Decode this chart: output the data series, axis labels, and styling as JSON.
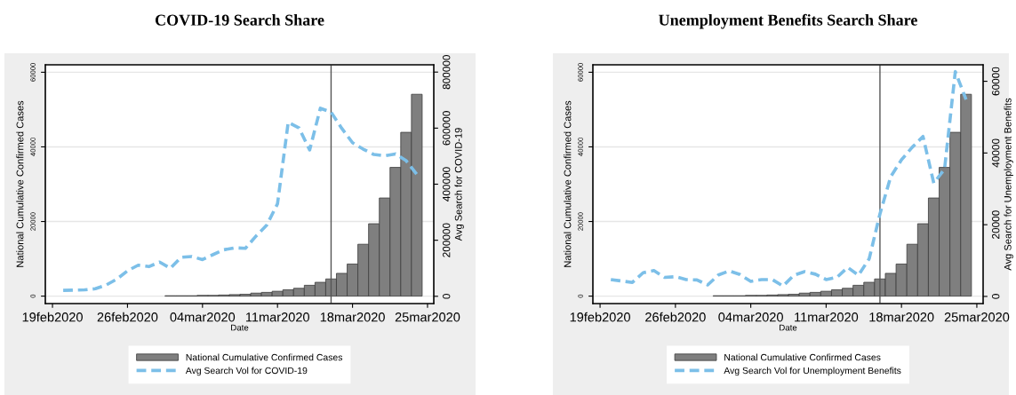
{
  "chart_data": [
    {
      "type": "bar",
      "title": "COVID-19 Search Share",
      "xlabel": "Date",
      "ylabel": "National Cumulative Confirmed Cases",
      "y2label": "Avg Search for COVID-19",
      "x": [
        "2020-02-20",
        "2020-02-21",
        "2020-02-22",
        "2020-02-23",
        "2020-02-24",
        "2020-02-25",
        "2020-02-26",
        "2020-02-27",
        "2020-02-28",
        "2020-02-29",
        "2020-03-01",
        "2020-03-02",
        "2020-03-03",
        "2020-03-04",
        "2020-03-05",
        "2020-03-06",
        "2020-03-07",
        "2020-03-08",
        "2020-03-09",
        "2020-03-10",
        "2020-03-11",
        "2020-03-12",
        "2020-03-13",
        "2020-03-14",
        "2020-03-15",
        "2020-03-16",
        "2020-03-17",
        "2020-03-18",
        "2020-03-19",
        "2020-03-20",
        "2020-03-21",
        "2020-03-22",
        "2020-03-23",
        "2020-03-24"
      ],
      "series": [
        {
          "name": "National Cumulative Confirmed Cases",
          "color": "#7f7f7f",
          "values": [
            0,
            0,
            0,
            0,
            0,
            0,
            0,
            0,
            0,
            0,
            100,
            100,
            100,
            200,
            200,
            300,
            400,
            500,
            800,
            1000,
            1300,
            1700,
            2100,
            2900,
            3700,
            4600,
            6100,
            8600,
            13900,
            19400,
            26300,
            34500,
            43900,
            54100
          ]
        },
        {
          "name": "Avg Search Vol for COVID-19",
          "type": "line",
          "axis": "y2",
          "color": "#7cbfe8",
          "line_style": "dashed",
          "values": [
            21000,
            22000,
            23000,
            27000,
            40000,
            61000,
            91000,
            111000,
            106000,
            122000,
            100000,
            139000,
            142000,
            131000,
            149000,
            166000,
            173000,
            171000,
            215000,
            254000,
            330000,
            621000,
            601000,
            522000,
            671000,
            657000,
            599000,
            548000,
            525000,
            506000,
            501000,
            508000,
            484000,
            435000
          ]
        }
      ],
      "xlim": [
        "2020-02-18T08:00",
        "2020-03-25T14:00"
      ],
      "xticks": [
        {
          "value": "2020-02-19",
          "label": "19feb2020"
        },
        {
          "value": "2020-02-26",
          "label": "26feb2020"
        },
        {
          "value": "2020-03-04",
          "label": "04mar2020"
        },
        {
          "value": "2020-03-11",
          "label": "11mar2020"
        },
        {
          "value": "2020-03-18",
          "label": "18mar2020"
        },
        {
          "value": "2020-03-25",
          "label": "25mar2020"
        }
      ],
      "ylim": [
        -2000,
        62000
      ],
      "yticks": [
        0,
        20000,
        40000,
        60000
      ],
      "y2lim": [
        -26000,
        826000
      ],
      "y2ticks": [
        0,
        200000,
        400000,
        600000,
        800000
      ],
      "ref_lines": [
        {
          "axis": "x",
          "value": "2020-03-16",
          "color": "#555555"
        }
      ],
      "grid": "y",
      "legend": "bottom"
    },
    {
      "type": "bar",
      "title": "Unemployment Benefits Search Share",
      "xlabel": "Date",
      "ylabel": "National Cumulative Confirmed Cases",
      "y2label": "Avg Search for Unemployment Benefits",
      "x": [
        "2020-02-20",
        "2020-02-21",
        "2020-02-22",
        "2020-02-23",
        "2020-02-24",
        "2020-02-25",
        "2020-02-26",
        "2020-02-27",
        "2020-02-28",
        "2020-02-29",
        "2020-03-01",
        "2020-03-02",
        "2020-03-03",
        "2020-03-04",
        "2020-03-05",
        "2020-03-06",
        "2020-03-07",
        "2020-03-08",
        "2020-03-09",
        "2020-03-10",
        "2020-03-11",
        "2020-03-12",
        "2020-03-13",
        "2020-03-14",
        "2020-03-15",
        "2020-03-16",
        "2020-03-17",
        "2020-03-18",
        "2020-03-19",
        "2020-03-20",
        "2020-03-21",
        "2020-03-22",
        "2020-03-23",
        "2020-03-24"
      ],
      "series": [
        {
          "name": "National Cumulative Confirmed Cases",
          "color": "#7f7f7f",
          "values": [
            0,
            0,
            0,
            0,
            0,
            0,
            0,
            0,
            0,
            0,
            100,
            100,
            100,
            200,
            200,
            300,
            400,
            500,
            800,
            1000,
            1300,
            1700,
            2100,
            2900,
            3700,
            4600,
            6100,
            8600,
            13900,
            19400,
            26300,
            34500,
            43900,
            54100
          ]
        },
        {
          "name": "Avg Search Vol for Unemployment Benefits",
          "type": "line",
          "axis": "y2",
          "color": "#7cbfe8",
          "line_style": "dashed",
          "values": [
            4700,
            4300,
            3900,
            6600,
            7200,
            5300,
            5500,
            4700,
            4600,
            3200,
            6000,
            7100,
            6100,
            4200,
            4700,
            4700,
            2900,
            5900,
            6900,
            6200,
            4700,
            5300,
            8100,
            5900,
            10500,
            23000,
            33400,
            38100,
            41600,
            44600,
            31600,
            35500,
            62700,
            54900
          ]
        }
      ],
      "xlim": [
        "2020-02-18T08:00",
        "2020-03-25T14:00"
      ],
      "xticks": [
        {
          "value": "2020-02-19",
          "label": "19feb2020"
        },
        {
          "value": "2020-02-26",
          "label": "26feb2020"
        },
        {
          "value": "2020-03-04",
          "label": "04mar2020"
        },
        {
          "value": "2020-03-11",
          "label": "11mar2020"
        },
        {
          "value": "2020-03-18",
          "label": "18mar2020"
        },
        {
          "value": "2020-03-25",
          "label": "25mar2020"
        }
      ],
      "ylim": [
        -2000,
        62000
      ],
      "yticks": [
        0,
        20000,
        40000,
        60000
      ],
      "y2lim": [
        -2000,
        64600
      ],
      "y2ticks": [
        0,
        20000,
        40000,
        60000
      ],
      "ref_lines": [
        {
          "axis": "x",
          "value": "2020-03-16",
          "color": "#555555"
        }
      ],
      "grid": "y",
      "legend": "bottom"
    }
  ]
}
